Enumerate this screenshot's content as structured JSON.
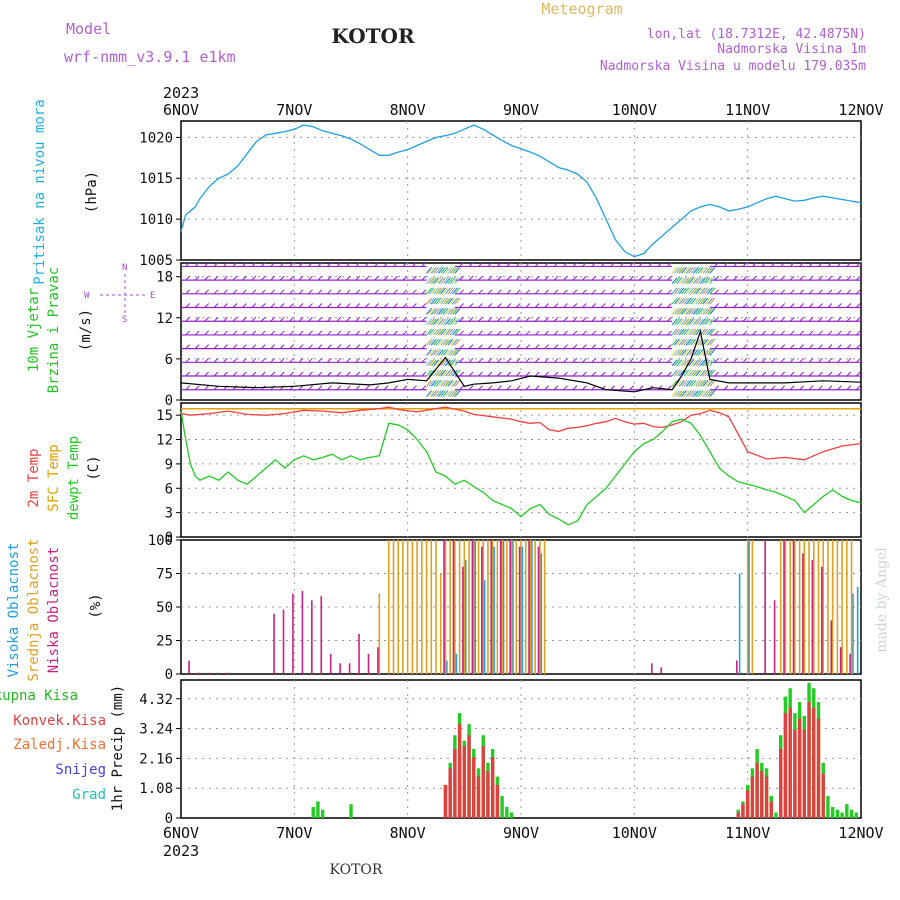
{
  "header": {
    "model_label": "Model",
    "model_name": "wrf-nmm_v3.9.1 e1km",
    "station": "KOTOR",
    "title": "Meteogram",
    "coords": "lon,lat (18.7312E, 42.4875N)",
    "altitude": "Nadmorska Visina 1m",
    "model_altitude": "Nadmorska Visina u modelu 179.035m",
    "footer_station": "KOTOR",
    "watermark": "made by Angel"
  },
  "time_axis": {
    "year": "2023",
    "ticks": [
      "6NOV",
      "7NOV",
      "8NOV",
      "9NOV",
      "10NOV",
      "11NOV",
      "12NOV"
    ],
    "range_hours": [
      0,
      144
    ]
  },
  "colors": {
    "pressure": "#1ea0e6",
    "temp": "#f04040",
    "sfc": "#e0a000",
    "dewpt": "#22cc22",
    "high_cloud": "#20a0e0",
    "mid_cloud": "#e0a020",
    "low_cloud": "#cc2080",
    "total_precip": "#22cc22",
    "conv_precip": "#e04040",
    "frozen": "#f07030",
    "snow": "#4040e0",
    "grad": "#20c0c0",
    "wind_barb": "#9020d0",
    "gust": "#000000"
  },
  "chart_data": [
    {
      "type": "line",
      "panel": "pressure",
      "ylabel": [
        "Pritisak na nivou mora",
        "(hPa)"
      ],
      "ylim": [
        1005,
        1022
      ],
      "yticks": [
        1005,
        1010,
        1015,
        1020
      ],
      "grid": true,
      "series": [
        {
          "x": [
            0,
            1,
            2,
            3,
            4,
            6,
            8,
            10,
            12,
            14,
            16,
            18,
            20,
            22,
            24,
            26,
            28,
            30,
            32,
            34,
            36,
            38,
            40,
            42,
            44,
            46,
            48,
            50,
            52,
            54,
            56,
            58,
            60,
            62,
            64,
            66,
            68,
            70,
            72,
            74,
            76,
            78,
            80,
            82,
            84,
            86,
            88,
            90,
            92,
            94,
            96,
            98,
            100,
            102,
            104,
            106,
            108,
            110,
            112,
            114,
            116,
            118,
            120,
            122,
            124,
            126,
            128,
            130,
            132,
            134,
            136,
            138,
            140,
            142,
            144
          ],
          "values": [
            1008.5,
            1010.5,
            1011,
            1011.5,
            1012.5,
            1014,
            1015,
            1015.5,
            1016.5,
            1018,
            1019.5,
            1020.3,
            1020.5,
            1020.7,
            1021,
            1021.5,
            1021.3,
            1020.8,
            1020.5,
            1020.2,
            1019.8,
            1019.2,
            1018.5,
            1017.8,
            1017.8,
            1018.2,
            1018.5,
            1019,
            1019.5,
            1020,
            1020.2,
            1020.5,
            1021,
            1021.5,
            1021,
            1020.3,
            1019.6,
            1019,
            1018.6,
            1018.2,
            1017.7,
            1017,
            1016.3,
            1016,
            1015.5,
            1014.5,
            1012.5,
            1010,
            1007.5,
            1006,
            1005.4,
            1005.8,
            1007,
            1008,
            1009,
            1010,
            1011,
            1011.5,
            1011.8,
            1011.5,
            1011,
            1011.2,
            1011.5,
            1012,
            1012.5,
            1012.8,
            1012.5,
            1012.2,
            1012.3,
            1012.6,
            1012.8,
            1012.6,
            1012.4,
            1012.2,
            1012
          ]
        }
      ]
    },
    {
      "type": "line",
      "panel": "wind",
      "ylabel": [
        "10m Vjetar",
        "Brzina i Pravac",
        "(m/s)"
      ],
      "compass": [
        "N",
        "S",
        "W",
        "E"
      ],
      "ylim": [
        0,
        20
      ],
      "yticks": [
        0,
        6,
        12,
        18
      ],
      "grid": true,
      "barb_rows": [
        1.5,
        3.5,
        5.5,
        7.5,
        9.5,
        11.5,
        13.5,
        15.5,
        17.5,
        19.5
      ],
      "calm_spans": [
        [
          0,
          52
        ],
        [
          58,
          104
        ],
        [
          112,
          144
        ]
      ],
      "gust_spans": [
        [
          52,
          58
        ],
        [
          104,
          112
        ]
      ],
      "series": [
        {
          "name": "speed",
          "x": [
            0,
            8,
            16,
            24,
            32,
            40,
            44,
            48,
            52,
            56,
            60,
            62,
            66,
            70,
            74,
            80,
            86,
            90,
            96,
            100,
            104,
            106,
            108,
            110,
            112,
            116,
            120,
            128,
            136,
            144
          ],
          "values": [
            2.5,
            2,
            1.8,
            2,
            2.5,
            2.2,
            2.5,
            3,
            2.8,
            6.2,
            2,
            2.3,
            2.5,
            2.8,
            3.5,
            3.2,
            2.5,
            1.5,
            1.2,
            1.8,
            1.5,
            3.5,
            6,
            10,
            3,
            2.5,
            2.5,
            2.5,
            2.8,
            2.6
          ]
        }
      ]
    },
    {
      "type": "line",
      "panel": "temperature",
      "ylabel": [
        "2m Temp",
        "SFC Temp",
        "dewpt Temp",
        "(C)"
      ],
      "ylim": [
        0,
        16.5
      ],
      "yticks": [
        0,
        3,
        6,
        9,
        12,
        15
      ],
      "grid": true,
      "series": [
        {
          "name": "2m Temp",
          "x": [
            0,
            2,
            6,
            10,
            14,
            18,
            22,
            26,
            30,
            34,
            38,
            42,
            44,
            46,
            50,
            54,
            56,
            60,
            62,
            66,
            70,
            72,
            74,
            76,
            78,
            80,
            82,
            84,
            86,
            88,
            90,
            92,
            94,
            96,
            98,
            100,
            102,
            104,
            106,
            108,
            110,
            112,
            114,
            116,
            120,
            124,
            128,
            132,
            136,
            140,
            144
          ],
          "values": [
            15.2,
            15,
            15.2,
            15.5,
            15.1,
            15,
            15.2,
            15.6,
            15.5,
            15.3,
            15.6,
            15.8,
            16,
            15.7,
            15.4,
            15.8,
            16,
            15.5,
            15.1,
            14.8,
            14.5,
            14.2,
            14,
            14.1,
            13.2,
            13,
            13.4,
            13.5,
            13.7,
            14,
            14.2,
            14.6,
            14.2,
            13.9,
            14,
            13.6,
            13.5,
            13.8,
            14.2,
            15,
            15.2,
            15.6,
            15.3,
            14.8,
            10.5,
            9.6,
            9.8,
            9.5,
            10.5,
            11.2,
            11.5
          ]
        },
        {
          "name": "SFC Temp",
          "x": [
            0,
            144
          ],
          "values": [
            15.8,
            15.8
          ]
        },
        {
          "name": "dewpt Temp",
          "x": [
            0,
            1,
            2,
            3,
            4,
            6,
            8,
            10,
            12,
            14,
            16,
            18,
            20,
            22,
            24,
            26,
            28,
            30,
            32,
            34,
            36,
            38,
            40,
            42,
            44,
            46,
            48,
            50,
            52,
            54,
            56,
            58,
            60,
            62,
            64,
            66,
            68,
            70,
            72,
            74,
            76,
            78,
            80,
            82,
            84,
            86,
            88,
            90,
            92,
            94,
            96,
            98,
            100,
            102,
            104,
            106,
            108,
            110,
            112,
            114,
            116,
            118,
            120,
            122,
            124,
            126,
            128,
            130,
            132,
            134,
            136,
            138,
            140,
            142,
            144
          ],
          "values": [
            15.5,
            12,
            9,
            7.5,
            7,
            7.5,
            7,
            8,
            7,
            6.5,
            7.5,
            8.5,
            9.5,
            8.5,
            9.5,
            10,
            9.5,
            9.8,
            10.2,
            9.5,
            10,
            9.5,
            9.8,
            10,
            14,
            13.8,
            13.2,
            12,
            10.5,
            8,
            7.5,
            6.5,
            7,
            6.2,
            5.5,
            4.5,
            4,
            3.5,
            2.5,
            3.5,
            4,
            2.8,
            2.2,
            1.5,
            2,
            4,
            5,
            6,
            7.5,
            9,
            10.5,
            11.5,
            12,
            13,
            14.2,
            14.5,
            14,
            12.5,
            10.5,
            8.5,
            7.5,
            6.8,
            6.5,
            6.2,
            5.8,
            5.5,
            5,
            4.5,
            3,
            4,
            5,
            5.8,
            5,
            4.5,
            4.2
          ]
        }
      ]
    },
    {
      "type": "bar",
      "panel": "cloud",
      "ylabel": [
        "Visoka Oblacnost",
        "Srednja Oblacnost",
        "Niska Oblacnost",
        "(%)"
      ],
      "ylim": [
        0,
        100
      ],
      "yticks": [
        0,
        25,
        50,
        75,
        100
      ],
      "grid": true,
      "series": [
        {
          "name": "Visoka Oblacnost",
          "x": [
            56,
            58,
            60,
            62,
            64,
            66,
            68,
            70,
            72,
            74,
            76,
            118,
            120,
            142,
            143
          ],
          "values": [
            10,
            15,
            85,
            100,
            70,
            95,
            100,
            100,
            95,
            100,
            90,
            75,
            100,
            60,
            65
          ]
        },
        {
          "name": "Srednja Oblacnost",
          "x": [
            42,
            44,
            45,
            46,
            47,
            48,
            49,
            50,
            51,
            52,
            53,
            54,
            55,
            56,
            57,
            58,
            59,
            60,
            61,
            62,
            63,
            64,
            65,
            66,
            67,
            68,
            69,
            70,
            71,
            72,
            73,
            74,
            75,
            76,
            77,
            120,
            121,
            127,
            128,
            129,
            130,
            131,
            132,
            133,
            134,
            135,
            136,
            137,
            138,
            139,
            140,
            141,
            142
          ],
          "values": [
            60,
            100,
            100,
            100,
            100,
            100,
            100,
            100,
            100,
            100,
            100,
            100,
            75,
            100,
            100,
            100,
            100,
            100,
            100,
            100,
            100,
            100,
            100,
            100,
            100,
            100,
            100,
            100,
            100,
            100,
            100,
            100,
            100,
            100,
            100,
            100,
            100,
            100,
            100,
            100,
            100,
            100,
            100,
            100,
            100,
            100,
            100,
            100,
            100,
            100,
            100,
            100,
            100
          ]
        },
        {
          "name": "Niska Oblacnost",
          "x": [
            2,
            4,
            6,
            8,
            10,
            20,
            22,
            24,
            26,
            28,
            30,
            32,
            34,
            36,
            38,
            40,
            42,
            56,
            58,
            60,
            62,
            64,
            66,
            68,
            70,
            72,
            74,
            76,
            100,
            102,
            118,
            124,
            126,
            128,
            130,
            132,
            134,
            136,
            138,
            140,
            142
          ],
          "values": [
            10,
            1,
            1,
            1,
            1,
            45,
            48,
            60,
            62,
            55,
            58,
            15,
            8,
            8,
            30,
            15,
            20,
            100,
            100,
            80,
            100,
            95,
            100,
            100,
            100,
            95,
            100,
            95,
            8,
            5,
            10,
            100,
            55,
            100,
            100,
            90,
            85,
            80,
            40,
            20,
            15
          ]
        }
      ]
    },
    {
      "type": "bar",
      "panel": "precip",
      "ylabel": [
        "1hr Precip (mm)"
      ],
      "legend": [
        "Ukupna Kisa",
        "Konvek.Kisa",
        "Zaledj.Kisa",
        "Snijeg",
        "Grad"
      ],
      "ylim": [
        0,
        5
      ],
      "yticks": [
        0,
        1.08,
        2.16,
        3.24,
        4.32
      ],
      "grid": true,
      "series": [
        {
          "name": "Ukupna Kisa",
          "x": [
            28,
            29,
            30,
            36,
            56,
            57,
            58,
            59,
            60,
            61,
            62,
            63,
            64,
            65,
            66,
            67,
            68,
            69,
            70,
            118,
            119,
            120,
            121,
            122,
            123,
            124,
            125,
            126,
            127,
            128,
            129,
            130,
            131,
            132,
            133,
            134,
            135,
            136,
            137,
            138,
            139,
            140,
            141,
            142,
            143
          ],
          "values": [
            0.4,
            0.6,
            0.3,
            0.5,
            1.2,
            2.0,
            3.0,
            3.8,
            2.8,
            3.4,
            2.5,
            1.8,
            3.0,
            2.0,
            2.5,
            1.5,
            0.8,
            0.4,
            0.2,
            0.3,
            0.6,
            1.2,
            1.8,
            2.5,
            2.0,
            1.8,
            0.8,
            0.2,
            3.0,
            4.4,
            4.7,
            3.8,
            4.2,
            3.7,
            4.9,
            4.7,
            4.2,
            2.0,
            0.8,
            0.4,
            0.3,
            0.2,
            0.5,
            0.3,
            0.2
          ]
        },
        {
          "name": "Konvek.Kisa",
          "x": [
            56,
            57,
            58,
            59,
            60,
            61,
            62,
            63,
            64,
            65,
            66,
            67,
            118,
            119,
            120,
            121,
            122,
            123,
            124,
            125,
            127,
            128,
            129,
            130,
            131,
            132,
            133,
            134,
            135,
            136
          ],
          "values": [
            1.2,
            1.8,
            2.5,
            3.4,
            2.6,
            3.0,
            2.2,
            1.5,
            2.6,
            1.7,
            2.2,
            1.2,
            0.2,
            0.5,
            1.0,
            1.5,
            2.0,
            1.7,
            1.5,
            0.6,
            2.5,
            3.8,
            4.0,
            3.2,
            3.6,
            3.2,
            4.2,
            4.0,
            3.6,
            1.6
          ]
        }
      ]
    }
  ]
}
